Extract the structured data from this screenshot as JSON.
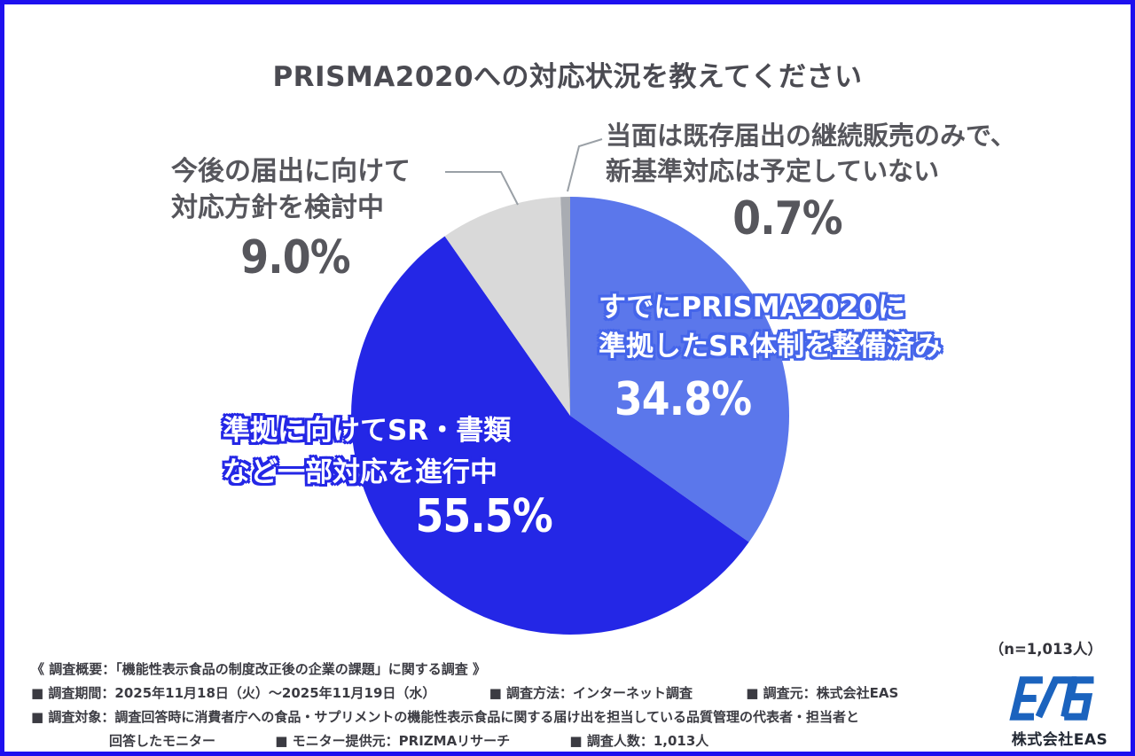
{
  "title": "PRISMA2020への対応状況を教えてください",
  "chart_data": {
    "type": "pie",
    "title": "PRISMA2020への対応状況を教えてください",
    "unit": "%",
    "n_label": "（n=1,013人）",
    "direction": "clockwise",
    "start_angle_deg": 0,
    "legend_position": "none",
    "slices": [
      {
        "label": "すでにPRISMA2020に準拠したSR体制を整備済み",
        "value": 34.8,
        "color": "#5B77EB"
      },
      {
        "label": "準拠に向けてSR・書類など一部対応を進行中",
        "value": 55.5,
        "color": "#2427E6"
      },
      {
        "label": "今後の届出に向けて対応方針を検討中",
        "value": 9.0,
        "color": "#D9D9D9"
      },
      {
        "label": "当面は既存届出の継続販売のみで、新基準対応は予定していない",
        "value": 0.7,
        "color": "#A9ACB2"
      }
    ]
  },
  "callouts": {
    "none": {
      "line1": "当面は既存届出の継続販売のみで、",
      "line2": "新基準対応は予定していない",
      "pct": "0.7%"
    },
    "considering": {
      "line1": "今後の届出に向けて",
      "line2": "対応方針を検討中",
      "pct": "9.0%"
    },
    "existing": {
      "line1": "すでにPRISMA2020に",
      "line2": "準拠したSR体制を整備済み",
      "pct": "34.8%"
    },
    "progress": {
      "line1": "準拠に向けてSR・書類",
      "line2": "など一部対応を進行中",
      "pct": "55.5%"
    }
  },
  "footer": {
    "overview": "《 調査概要：「機能性表示食品の制度改正後の企業の課題」に関する調査 》",
    "period": "■ 調査期間：2025年11月18日（火）〜2025年11月19日（水）",
    "method": "■ 調査方法：インターネット調査",
    "source": "■ 調査元：株式会社EAS",
    "target": "■ 調査対象：調査回答時に消費者庁への食品・サプリメントの機能性表示食品に関する届け出を担当している品質管理の代表者・担当者と",
    "target_cont": "回答したモニター",
    "monitor": "■ モニター提供元：PRIZMAリサーチ",
    "count": "■ 調査人数：1,013人"
  },
  "branding": {
    "n_label": "（n=1,013人）",
    "company": "株式会社EAS",
    "logo": "EAS"
  },
  "colors": {
    "frame_border": "#1D10EF",
    "title_text": "#4B4B52",
    "callout_text": "#56565C",
    "leader_line": "#9AA0A6",
    "outline_existing": "#4565EA",
    "outline_progress": "#2427E6",
    "footer_text": "#3B3B42",
    "logo_blue": "#1B63BE"
  }
}
